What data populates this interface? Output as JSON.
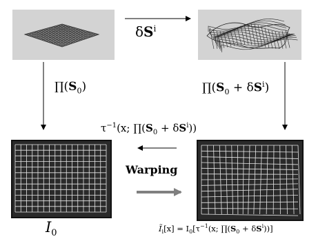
{
  "diagram": {
    "top_arrow_label": {
      "prefix": "δ",
      "symbol": "S",
      "sup": "i"
    },
    "left_arrow_label": {
      "op": "∏(",
      "symbol": "S",
      "sub": "0",
      "close": ")"
    },
    "right_arrow_label": {
      "op": "∏(",
      "s0": "S",
      "sub": "0",
      "plus": " + δ",
      "si": "S",
      "sup": "i",
      "close": ")"
    },
    "inverse_label": {
      "pre": "τ",
      "sup": "−1",
      "mid": "(x; ∏(",
      "s0": "S",
      "sub": "0",
      "plus": " + δ",
      "si": "S",
      "sup2": "i",
      "close": "))"
    },
    "warping_label": "Warping",
    "bottom_left_label": {
      "symbol": "I",
      "sub": "0"
    },
    "bottom_right_label": {
      "lhs": "Ĩ",
      "lhs_sub": "i",
      "lhs_arg": "[x] = I",
      "I_sub": "0",
      "open": "[τ",
      "sup": "−1",
      "mid": "(x; ∏(",
      "s0": "S",
      "s0_sub": "0",
      "plus": " + δ",
      "si": "S",
      "sup2": "i",
      "close": "))]"
    }
  }
}
